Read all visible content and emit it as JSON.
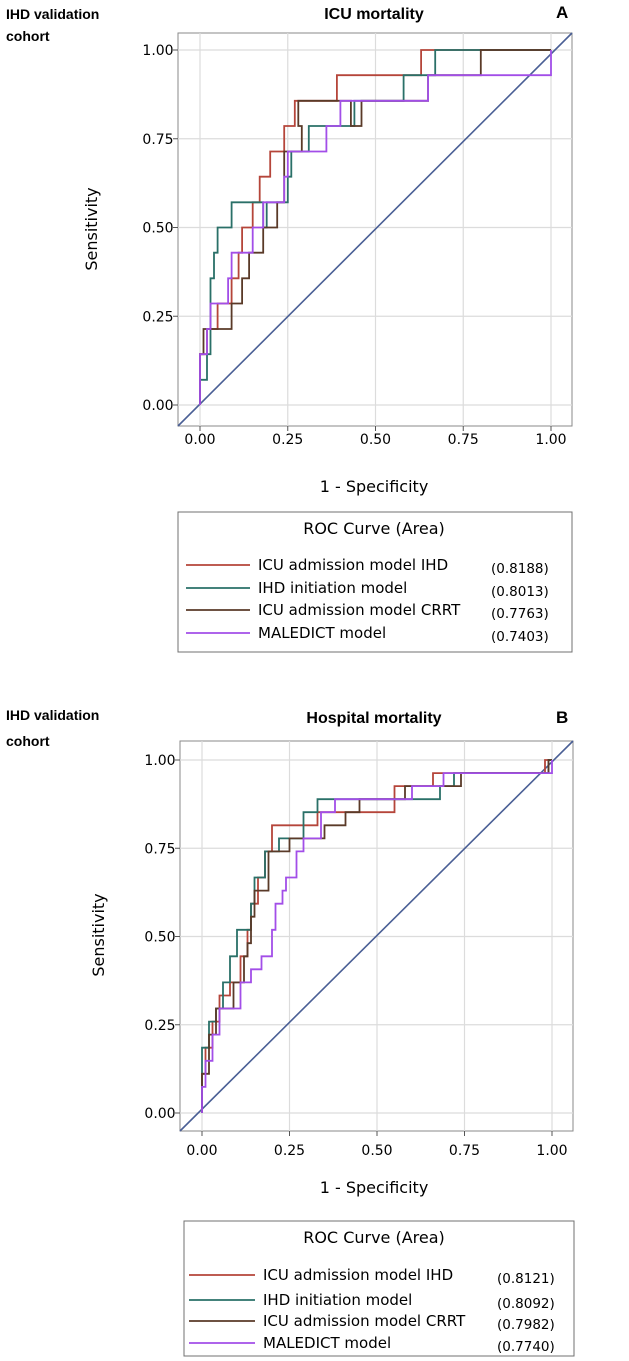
{
  "chart_data": [
    {
      "type": "line",
      "panel": "A",
      "cohort_label": [
        "IHD validation",
        "cohort"
      ],
      "title": "ICU mortality",
      "xlabel": "1 - Specificity",
      "ylabel": "Sensitivity",
      "xlim": [
        0,
        1
      ],
      "ylim": [
        0,
        1
      ],
      "xticks": [
        "0.00",
        "0.25",
        "0.50",
        "0.75",
        "1.00"
      ],
      "yticks": [
        "0.00",
        "0.25",
        "0.50",
        "0.75",
        "1.00"
      ],
      "grid": true,
      "reference_line": true,
      "legend_title": "ROC Curve (Area)",
      "series": [
        {
          "name": "ICU admission model IHD",
          "area": "(0.8188)",
          "color": "#b5453a",
          "points": [
            [
              0,
              0
            ],
            [
              0,
              0.143
            ],
            [
              0.02,
              0.143
            ],
            [
              0.02,
              0.214
            ],
            [
              0.05,
              0.214
            ],
            [
              0.05,
              0.286
            ],
            [
              0.09,
              0.286
            ],
            [
              0.09,
              0.357
            ],
            [
              0.11,
              0.357
            ],
            [
              0.11,
              0.429
            ],
            [
              0.12,
              0.429
            ],
            [
              0.12,
              0.5
            ],
            [
              0.15,
              0.5
            ],
            [
              0.15,
              0.571
            ],
            [
              0.17,
              0.571
            ],
            [
              0.17,
              0.643
            ],
            [
              0.2,
              0.643
            ],
            [
              0.2,
              0.714
            ],
            [
              0.24,
              0.714
            ],
            [
              0.24,
              0.786
            ],
            [
              0.27,
              0.786
            ],
            [
              0.27,
              0.857
            ],
            [
              0.39,
              0.857
            ],
            [
              0.39,
              0.929
            ],
            [
              0.63,
              0.929
            ],
            [
              0.63,
              1.0
            ],
            [
              1.0,
              1.0
            ]
          ]
        },
        {
          "name": "IHD initiation model",
          "area": "(0.8013)",
          "color": "#2a7068",
          "points": [
            [
              0,
              0
            ],
            [
              0,
              0.071
            ],
            [
              0.02,
              0.071
            ],
            [
              0.02,
              0.143
            ],
            [
              0.03,
              0.143
            ],
            [
              0.03,
              0.357
            ],
            [
              0.04,
              0.357
            ],
            [
              0.04,
              0.429
            ],
            [
              0.05,
              0.429
            ],
            [
              0.05,
              0.5
            ],
            [
              0.09,
              0.5
            ],
            [
              0.09,
              0.571
            ],
            [
              0.18,
              0.571
            ],
            [
              0.18,
              0.5
            ],
            [
              0.19,
              0.5
            ],
            [
              0.19,
              0.571
            ],
            [
              0.25,
              0.571
            ],
            [
              0.25,
              0.643
            ],
            [
              0.26,
              0.643
            ],
            [
              0.26,
              0.714
            ],
            [
              0.31,
              0.714
            ],
            [
              0.31,
              0.786
            ],
            [
              0.44,
              0.786
            ],
            [
              0.44,
              0.857
            ],
            [
              0.58,
              0.857
            ],
            [
              0.58,
              0.929
            ],
            [
              0.67,
              0.929
            ],
            [
              0.67,
              1.0
            ],
            [
              1.0,
              1.0
            ]
          ]
        },
        {
          "name": "ICU admission model CRRT",
          "area": "(0.7763)",
          "color": "#5a3a28",
          "points": [
            [
              0,
              0
            ],
            [
              0,
              0.143
            ],
            [
              0.01,
              0.143
            ],
            [
              0.01,
              0.214
            ],
            [
              0.09,
              0.214
            ],
            [
              0.09,
              0.286
            ],
            [
              0.12,
              0.286
            ],
            [
              0.12,
              0.357
            ],
            [
              0.14,
              0.357
            ],
            [
              0.14,
              0.429
            ],
            [
              0.18,
              0.429
            ],
            [
              0.18,
              0.5
            ],
            [
              0.22,
              0.5
            ],
            [
              0.22,
              0.571
            ],
            [
              0.24,
              0.571
            ],
            [
              0.24,
              0.714
            ],
            [
              0.29,
              0.714
            ],
            [
              0.29,
              0.786
            ],
            [
              0.28,
              0.786
            ],
            [
              0.28,
              0.857
            ],
            [
              0.43,
              0.857
            ],
            [
              0.43,
              0.786
            ],
            [
              0.46,
              0.786
            ],
            [
              0.46,
              0.857
            ],
            [
              0.65,
              0.857
            ],
            [
              0.65,
              0.929
            ],
            [
              0.8,
              0.929
            ],
            [
              0.8,
              1.0
            ],
            [
              1.0,
              1.0
            ]
          ]
        },
        {
          "name": "MALEDICT model",
          "area": "(0.7403)",
          "color": "#a24ee8",
          "points": [
            [
              0,
              0
            ],
            [
              0,
              0.143
            ],
            [
              0.02,
              0.143
            ],
            [
              0.02,
              0.214
            ],
            [
              0.03,
              0.214
            ],
            [
              0.03,
              0.286
            ],
            [
              0.08,
              0.286
            ],
            [
              0.08,
              0.357
            ],
            [
              0.09,
              0.357
            ],
            [
              0.09,
              0.429
            ],
            [
              0.15,
              0.429
            ],
            [
              0.15,
              0.5
            ],
            [
              0.18,
              0.5
            ],
            [
              0.18,
              0.571
            ],
            [
              0.24,
              0.571
            ],
            [
              0.24,
              0.643
            ],
            [
              0.25,
              0.643
            ],
            [
              0.25,
              0.714
            ],
            [
              0.36,
              0.714
            ],
            [
              0.36,
              0.786
            ],
            [
              0.4,
              0.786
            ],
            [
              0.4,
              0.857
            ],
            [
              0.65,
              0.857
            ],
            [
              0.65,
              0.929
            ],
            [
              1.0,
              0.929
            ],
            [
              1.0,
              1.0
            ]
          ]
        }
      ]
    },
    {
      "type": "line",
      "panel": "B",
      "cohort_label": [
        "IHD validation",
        "cohort"
      ],
      "title": "Hospital mortality",
      "xlabel": "1 - Specificity",
      "ylabel": "Sensitivity",
      "xlim": [
        0,
        1
      ],
      "ylim": [
        0,
        1
      ],
      "xticks": [
        "0.00",
        "0.25",
        "0.50",
        "0.75",
        "1.00"
      ],
      "yticks": [
        "0.00",
        "0.25",
        "0.50",
        "0.75",
        "1.00"
      ],
      "grid": true,
      "reference_line": true,
      "legend_title": "ROC Curve (Area)",
      "series": [
        {
          "name": "ICU admission model IHD",
          "area": "(0.8121)",
          "color": "#b5453a",
          "points": [
            [
              0,
              0
            ],
            [
              0,
              0.111
            ],
            [
              0.01,
              0.111
            ],
            [
              0.01,
              0.185
            ],
            [
              0.03,
              0.185
            ],
            [
              0.03,
              0.259
            ],
            [
              0.05,
              0.259
            ],
            [
              0.05,
              0.333
            ],
            [
              0.08,
              0.333
            ],
            [
              0.08,
              0.37
            ],
            [
              0.11,
              0.37
            ],
            [
              0.11,
              0.444
            ],
            [
              0.13,
              0.444
            ],
            [
              0.13,
              0.519
            ],
            [
              0.14,
              0.519
            ],
            [
              0.14,
              0.593
            ],
            [
              0.16,
              0.593
            ],
            [
              0.16,
              0.667
            ],
            [
              0.18,
              0.667
            ],
            [
              0.18,
              0.741
            ],
            [
              0.2,
              0.741
            ],
            [
              0.2,
              0.815
            ],
            [
              0.33,
              0.815
            ],
            [
              0.33,
              0.852
            ],
            [
              0.55,
              0.852
            ],
            [
              0.55,
              0.926
            ],
            [
              0.66,
              0.926
            ],
            [
              0.66,
              0.963
            ],
            [
              0.98,
              0.963
            ],
            [
              0.98,
              1.0
            ],
            [
              1.0,
              1.0
            ]
          ]
        },
        {
          "name": "IHD initiation model",
          "area": "(0.8092)",
          "color": "#2a7068",
          "points": [
            [
              0,
              0
            ],
            [
              0,
              0.185
            ],
            [
              0.02,
              0.185
            ],
            [
              0.02,
              0.259
            ],
            [
              0.04,
              0.259
            ],
            [
              0.04,
              0.296
            ],
            [
              0.06,
              0.296
            ],
            [
              0.06,
              0.37
            ],
            [
              0.08,
              0.37
            ],
            [
              0.08,
              0.444
            ],
            [
              0.1,
              0.444
            ],
            [
              0.1,
              0.519
            ],
            [
              0.14,
              0.519
            ],
            [
              0.14,
              0.593
            ],
            [
              0.15,
              0.593
            ],
            [
              0.15,
              0.667
            ],
            [
              0.18,
              0.667
            ],
            [
              0.18,
              0.741
            ],
            [
              0.22,
              0.741
            ],
            [
              0.22,
              0.778
            ],
            [
              0.29,
              0.778
            ],
            [
              0.29,
              0.852
            ],
            [
              0.33,
              0.852
            ],
            [
              0.33,
              0.889
            ],
            [
              0.68,
              0.889
            ],
            [
              0.68,
              0.926
            ],
            [
              0.72,
              0.926
            ],
            [
              0.72,
              0.963
            ],
            [
              0.99,
              0.963
            ],
            [
              0.99,
              1.0
            ],
            [
              1.0,
              1.0
            ]
          ]
        },
        {
          "name": "ICU admission model CRRT",
          "area": "(0.7982)",
          "color": "#5a3a28",
          "points": [
            [
              0,
              0
            ],
            [
              0,
              0.111
            ],
            [
              0.02,
              0.111
            ],
            [
              0.02,
              0.222
            ],
            [
              0.04,
              0.222
            ],
            [
              0.04,
              0.296
            ],
            [
              0.09,
              0.296
            ],
            [
              0.09,
              0.37
            ],
            [
              0.12,
              0.37
            ],
            [
              0.12,
              0.444
            ],
            [
              0.13,
              0.444
            ],
            [
              0.13,
              0.481
            ],
            [
              0.14,
              0.481
            ],
            [
              0.14,
              0.556
            ],
            [
              0.15,
              0.556
            ],
            [
              0.15,
              0.63
            ],
            [
              0.19,
              0.63
            ],
            [
              0.19,
              0.741
            ],
            [
              0.25,
              0.741
            ],
            [
              0.25,
              0.778
            ],
            [
              0.35,
              0.778
            ],
            [
              0.35,
              0.815
            ],
            [
              0.41,
              0.815
            ],
            [
              0.41,
              0.852
            ],
            [
              0.45,
              0.852
            ],
            [
              0.45,
              0.889
            ],
            [
              0.58,
              0.889
            ],
            [
              0.58,
              0.926
            ],
            [
              0.74,
              0.926
            ],
            [
              0.74,
              0.963
            ],
            [
              0.99,
              0.963
            ],
            [
              0.99,
              1.0
            ],
            [
              1.0,
              1.0
            ]
          ]
        },
        {
          "name": "MALEDICT model",
          "area": "(0.7740)",
          "color": "#a24ee8",
          "points": [
            [
              0,
              0
            ],
            [
              0,
              0.074
            ],
            [
              0.01,
              0.074
            ],
            [
              0.01,
              0.148
            ],
            [
              0.03,
              0.148
            ],
            [
              0.03,
              0.222
            ],
            [
              0.05,
              0.222
            ],
            [
              0.05,
              0.296
            ],
            [
              0.11,
              0.296
            ],
            [
              0.11,
              0.37
            ],
            [
              0.14,
              0.37
            ],
            [
              0.14,
              0.407
            ],
            [
              0.17,
              0.407
            ],
            [
              0.17,
              0.444
            ],
            [
              0.2,
              0.444
            ],
            [
              0.2,
              0.519
            ],
            [
              0.21,
              0.519
            ],
            [
              0.21,
              0.593
            ],
            [
              0.23,
              0.593
            ],
            [
              0.23,
              0.63
            ],
            [
              0.24,
              0.63
            ],
            [
              0.24,
              0.667
            ],
            [
              0.27,
              0.667
            ],
            [
              0.27,
              0.741
            ],
            [
              0.29,
              0.741
            ],
            [
              0.29,
              0.778
            ],
            [
              0.34,
              0.778
            ],
            [
              0.34,
              0.852
            ],
            [
              0.38,
              0.852
            ],
            [
              0.38,
              0.889
            ],
            [
              0.6,
              0.889
            ],
            [
              0.6,
              0.926
            ],
            [
              0.69,
              0.926
            ],
            [
              0.69,
              0.963
            ],
            [
              1.0,
              0.963
            ],
            [
              1.0,
              1.0
            ]
          ]
        }
      ]
    }
  ]
}
